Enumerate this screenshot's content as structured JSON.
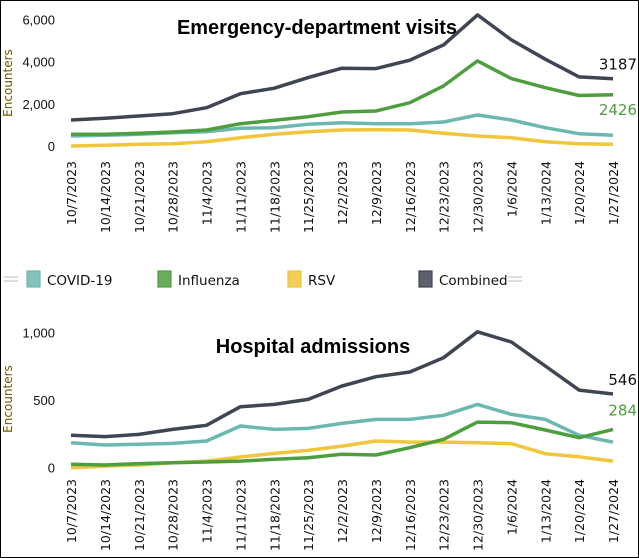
{
  "legend": [
    {
      "name": "COVID-19",
      "color": "#6cb8b1"
    },
    {
      "name": "Influenza",
      "color": "#4e9e3f"
    },
    {
      "name": "RSV",
      "color": "#f0c63c"
    },
    {
      "name": "Combined",
      "color": "#3f4552"
    }
  ],
  "chart_data": [
    {
      "type": "line",
      "title": "Emergency-department visits",
      "ylabel": "Encounters",
      "ylim": [
        0,
        6000
      ],
      "yticks": [
        "0",
        "2,000",
        "4,000",
        "6,000"
      ],
      "ytick_values": [
        0,
        2000,
        4000,
        6000
      ],
      "grid": false,
      "x": [
        "10/7/2023",
        "10/14/2023",
        "10/21/2023",
        "10/28/2023",
        "11/4/2023",
        "11/11/2023",
        "11/18/2023",
        "11/25/2023",
        "12/2/2023",
        "12/9/2023",
        "12/16/2023",
        "12/23/2023",
        "12/30/2023",
        "1/6/2024",
        "1/13/2024",
        "1/20/2024",
        "1/27/2024"
      ],
      "series": [
        {
          "name": "COVID-19",
          "values": [
            474,
            507,
            555,
            630,
            678,
            839,
            867,
            1028,
            1104,
            1057,
            1057,
            1137,
            1469,
            1232,
            867,
            583,
            507
          ]
        },
        {
          "name": "Influenza",
          "values": [
            555,
            555,
            602,
            664,
            758,
            1057,
            1218,
            1389,
            1611,
            1659,
            2052,
            2844,
            4028,
            3190,
            2763,
            2390,
            2426
          ]
        },
        {
          "name": "RSV",
          "values": [
            0,
            33,
            81,
            109,
            204,
            393,
            555,
            678,
            758,
            773,
            758,
            602,
            474,
            393,
            204,
            109,
            81
          ]
        },
        {
          "name": "Combined",
          "values": [
            1232,
            1313,
            1422,
            1531,
            1815,
            2479,
            2735,
            3237,
            3683,
            3664,
            4062,
            4787,
            6209,
            5024,
            4109,
            3270,
            3187
          ]
        }
      ],
      "end_labels": [
        {
          "series": "Combined",
          "text": "3187"
        },
        {
          "series": "Influenza",
          "text": "2426"
        }
      ]
    },
    {
      "type": "line",
      "title": "Hospital admissions",
      "ylabel": "Encounters",
      "ylim": [
        0,
        1000
      ],
      "yticks": [
        "0",
        "500",
        "1,000"
      ],
      "ytick_values": [
        0,
        500,
        1000
      ],
      "grid": false,
      "x": [
        "10/7/2023",
        "10/14/2023",
        "10/21/2023",
        "10/28/2023",
        "11/4/2023",
        "11/11/2023",
        "11/18/2023",
        "11/25/2023",
        "12/2/2023",
        "12/9/2023",
        "12/16/2023",
        "12/23/2023",
        "12/30/2023",
        "1/6/2024",
        "1/13/2024",
        "1/20/2024",
        "1/27/2024"
      ],
      "series": [
        {
          "name": "COVID-19",
          "values": [
            185,
            168,
            173,
            180,
            198,
            309,
            284,
            291,
            328,
            358,
            358,
            388,
            469,
            395,
            358,
            240,
            190
          ]
        },
        {
          "name": "Influenza",
          "values": [
            25,
            20,
            30,
            37,
            42,
            49,
            62,
            74,
            99,
            94,
            148,
            210,
            338,
            333,
            279,
            222,
            284
          ]
        },
        {
          "name": "RSV",
          "values": [
            0,
            12,
            20,
            37,
            49,
            79,
            106,
            128,
            160,
            198,
            190,
            190,
            185,
            178,
            104,
            81,
            49
          ]
        },
        {
          "name": "Combined",
          "values": [
            240,
            230,
            247,
            284,
            314,
            452,
            469,
            506,
            605,
            674,
            709,
            815,
            1007,
            931,
            753,
            575,
            546
          ]
        }
      ],
      "end_labels": [
        {
          "series": "Combined",
          "text": "546"
        },
        {
          "series": "Influenza",
          "text": "284"
        }
      ]
    }
  ]
}
